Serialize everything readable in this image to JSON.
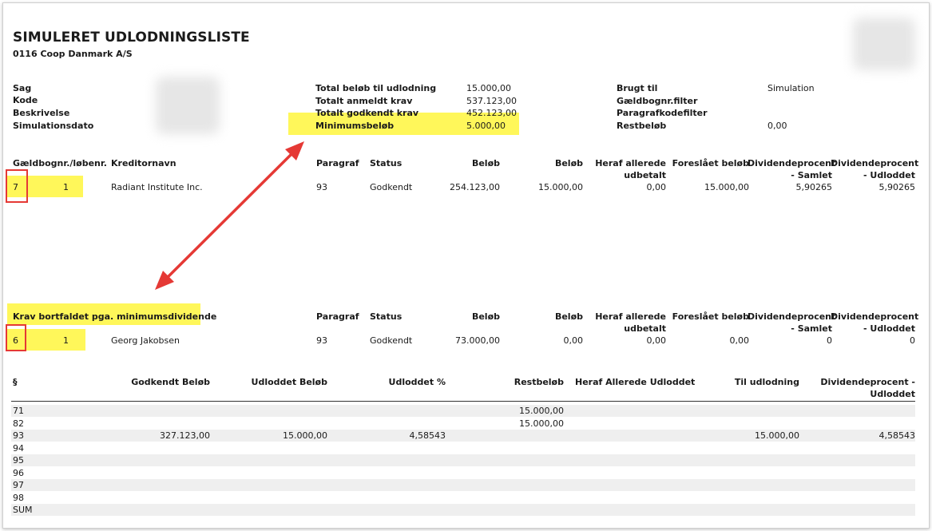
{
  "report": {
    "title": "SIMULERET UDLODNINGSLISTE",
    "subtitle": "0116 Coop Danmark A/S"
  },
  "info_left": [
    {
      "label": "Sag"
    },
    {
      "label": "Kode"
    },
    {
      "label": "Beskrivelse"
    },
    {
      "label": "Simulationsdato"
    }
  ],
  "info_mid": [
    {
      "label": "Total beløb til udlodning",
      "value": "15.000,00"
    },
    {
      "label": "Totalt anmeldt krav",
      "value": "537.123,00"
    },
    {
      "label": "Totalt godkendt krav",
      "value": "452.123,00"
    },
    {
      "label": "Minimumsbeløb",
      "value": "5.000,00"
    }
  ],
  "info_right": [
    {
      "label": "Brugt til",
      "value": "Simulation"
    },
    {
      "label": "Gældbognr.filter",
      "value": ""
    },
    {
      "label": "Paragrafkodefilter",
      "value": ""
    },
    {
      "label": "Restbeløb",
      "value": "0,00"
    }
  ],
  "table1": {
    "headers": {
      "gaeld": "Gældbognr./løbenr.",
      "kreditor": "Kreditornavn",
      "paragraf": "Paragraf",
      "status": "Status",
      "belob1": "Beløb",
      "belob2": "Beløb",
      "heraf1": "Heraf allerede",
      "heraf2": "udbetalt",
      "foreslaaet": "Foreslået beløb",
      "divs1": "Dividendeprocent",
      "divs2": "- Samlet",
      "divu1": "Dividendeprocent",
      "divu2": "- Udloddet"
    },
    "row": {
      "nr": "7",
      "lob": "1",
      "kreditor": "Radiant Institute Inc.",
      "paragraf": "93",
      "status": "Godkendt",
      "belob1": "254.123,00",
      "belob2": "15.000,00",
      "heraf": "0,00",
      "foreslaaet": "15.000,00",
      "divs": "5,90265",
      "divu": "5,90265"
    }
  },
  "table2": {
    "section_title": "Krav bortfaldet pga. minimumsdividende",
    "headers": {
      "paragraf": "Paragraf",
      "status": "Status",
      "belob1": "Beløb",
      "belob2": "Beløb",
      "heraf1": "Heraf allerede",
      "heraf2": "udbetalt",
      "foreslaaet": "Foreslået beløb",
      "divs1": "Dividendeprocent",
      "divs2": "- Samlet",
      "divu1": "Dividendeprocent",
      "divu2": "- Udloddet"
    },
    "row": {
      "nr": "6",
      "lob": "1",
      "kreditor": "Georg Jakobsen",
      "paragraf": "93",
      "status": "Godkendt",
      "belob1": "73.000,00",
      "belob2": "0,00",
      "heraf": "0,00",
      "foreslaaet": "0,00",
      "divs": "0",
      "divu": "0"
    }
  },
  "summary": {
    "headers": {
      "para": "§",
      "godkendt": "Godkendt Beløb",
      "udloddet": "Udloddet Beløb",
      "udloddetpct": "Udloddet %",
      "rest": "Restbeløb",
      "heraf": "Heraf Allerede Udloddet",
      "til": "Til udlodning",
      "div1": "Dividendeprocent -",
      "div2": "Udloddet"
    },
    "rows": [
      {
        "para": "71",
        "godkendt": "",
        "udloddet": "",
        "pct": "",
        "rest": "15.000,00",
        "heraf": "",
        "til": "",
        "div": ""
      },
      {
        "para": "82",
        "godkendt": "",
        "udloddet": "",
        "pct": "",
        "rest": "15.000,00",
        "heraf": "",
        "til": "",
        "div": ""
      },
      {
        "para": "93",
        "godkendt": "327.123,00",
        "udloddet": "15.000,00",
        "pct": "4,58543",
        "rest": "",
        "heraf": "",
        "til": "15.000,00",
        "div": "4,58543"
      },
      {
        "para": "94",
        "godkendt": "",
        "udloddet": "",
        "pct": "",
        "rest": "",
        "heraf": "",
        "til": "",
        "div": ""
      },
      {
        "para": "95",
        "godkendt": "",
        "udloddet": "",
        "pct": "",
        "rest": "",
        "heraf": "",
        "til": "",
        "div": ""
      },
      {
        "para": "96",
        "godkendt": "",
        "udloddet": "",
        "pct": "",
        "rest": "",
        "heraf": "",
        "til": "",
        "div": ""
      },
      {
        "para": "97",
        "godkendt": "",
        "udloddet": "",
        "pct": "",
        "rest": "",
        "heraf": "",
        "til": "",
        "div": ""
      },
      {
        "para": "98",
        "godkendt": "",
        "udloddet": "",
        "pct": "",
        "rest": "",
        "heraf": "",
        "til": "",
        "div": ""
      },
      {
        "para": "SUM",
        "godkendt": "",
        "udloddet": "",
        "pct": "",
        "rest": "",
        "heraf": "",
        "til": "",
        "div": ""
      }
    ]
  },
  "colors": {
    "highlight": "#fff75a",
    "annotation": "#e53935"
  }
}
